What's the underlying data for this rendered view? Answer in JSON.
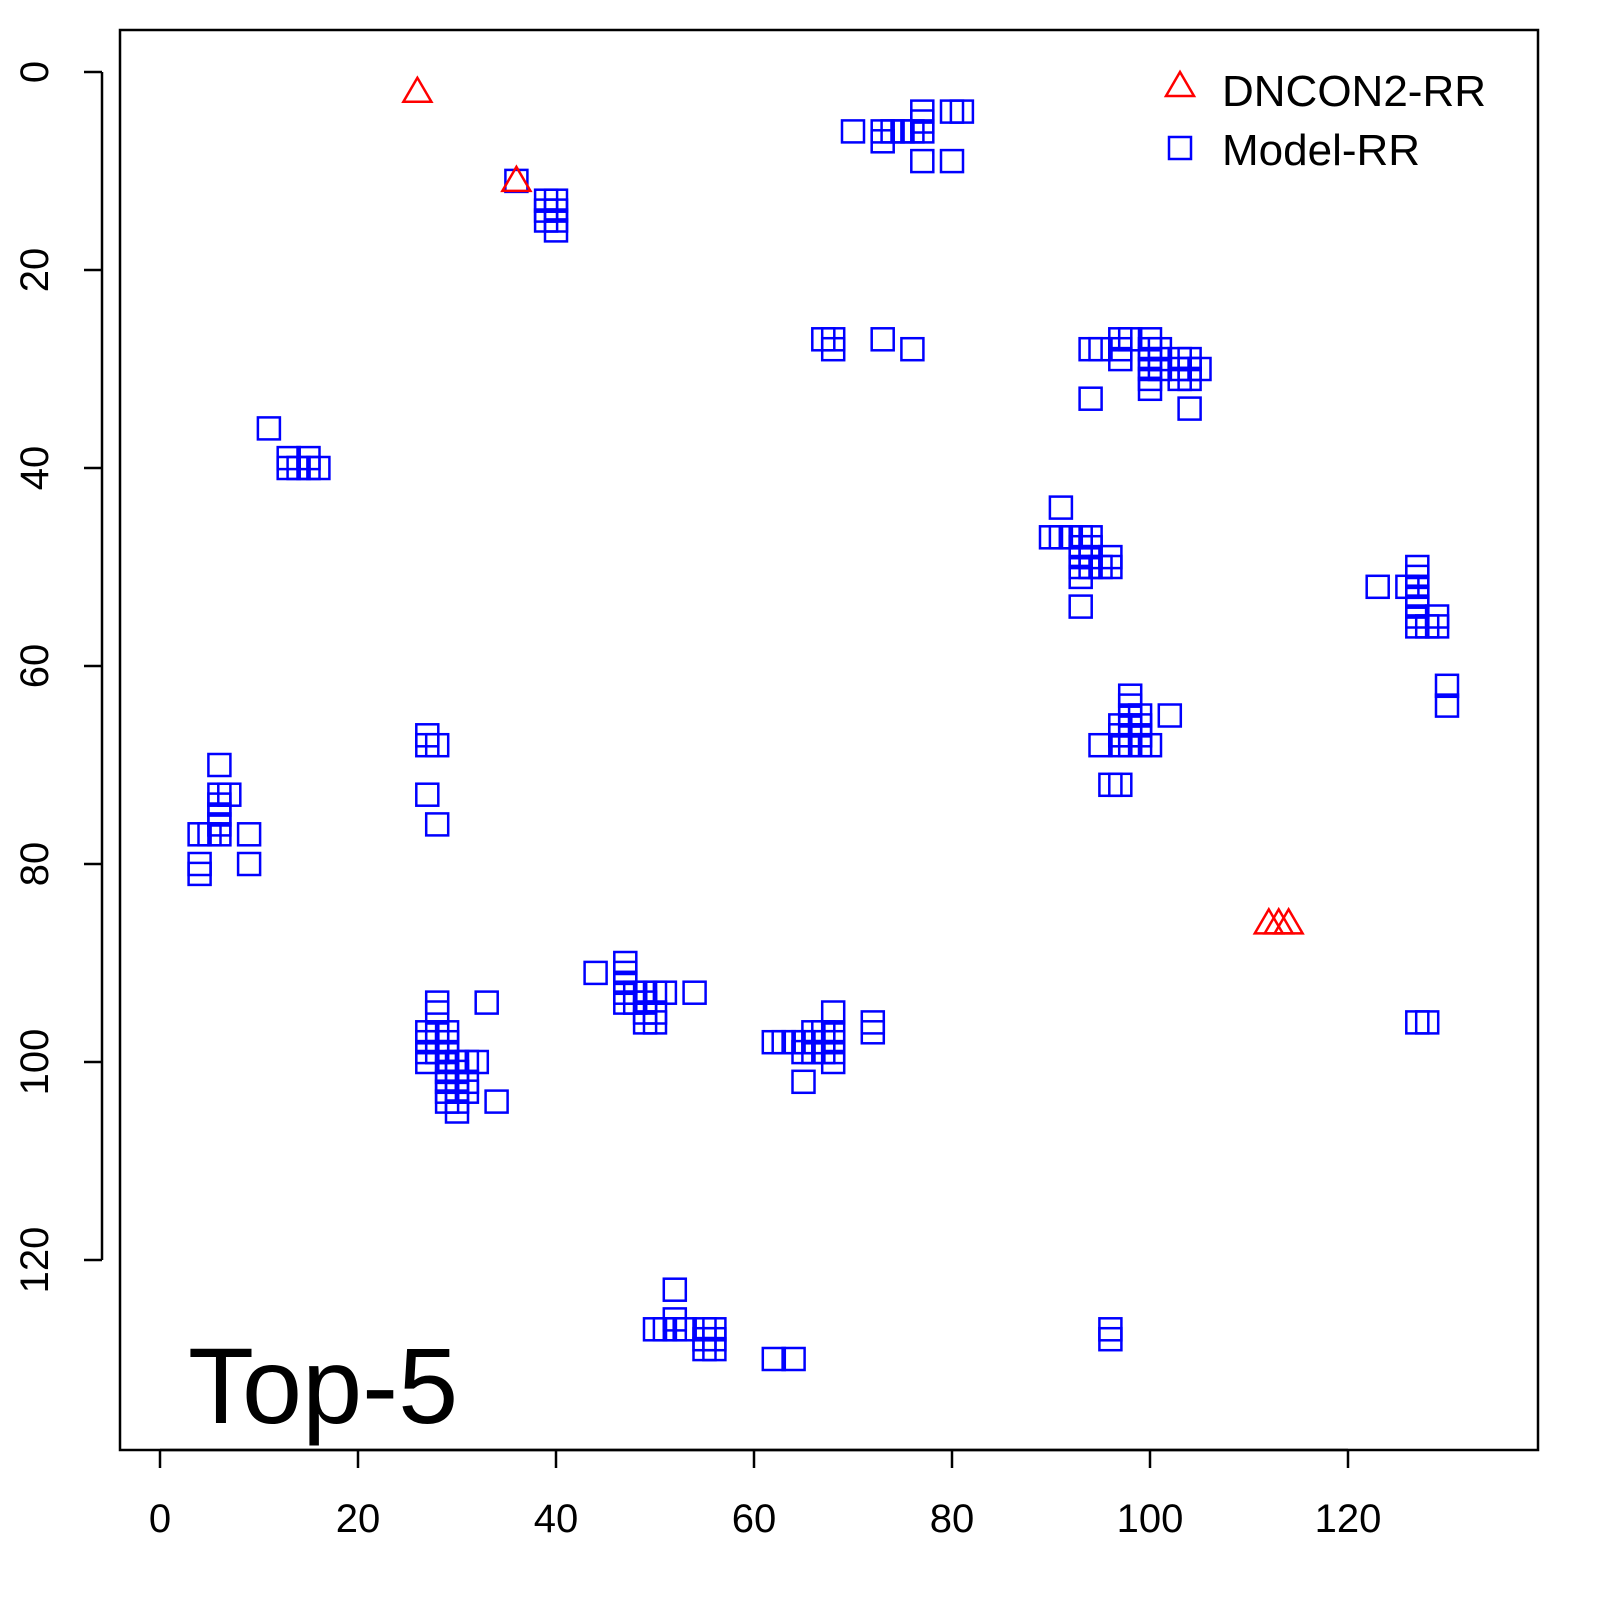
{
  "chart_data": {
    "type": "scatter",
    "title": "",
    "xlabel": "",
    "ylabel": "",
    "panel_label": "Top-5",
    "xlim": [
      -4,
      135
    ],
    "ylim": [
      -4,
      139
    ],
    "y_inverted": true,
    "x_ticks": [
      0,
      20,
      40,
      60,
      80,
      100,
      120
    ],
    "y_ticks": [
      0,
      20,
      40,
      60,
      80,
      100,
      120
    ],
    "legend_position": "top-right",
    "series": [
      {
        "name": "DNCON2-RR",
        "marker": "triangle",
        "color": "#ff0000",
        "points": [
          [
            26,
            2
          ],
          [
            36,
            11
          ],
          [
            112,
            86
          ],
          [
            113,
            86
          ],
          [
            114,
            86
          ]
        ]
      },
      {
        "name": "Model-RR",
        "marker": "square",
        "color": "#0000ff",
        "points": [
          [
            36,
            11
          ],
          [
            39,
            13
          ],
          [
            40,
            13
          ],
          [
            39,
            14
          ],
          [
            40,
            14
          ],
          [
            39,
            15
          ],
          [
            40,
            15
          ],
          [
            40,
            16
          ],
          [
            70,
            6
          ],
          [
            73,
            6
          ],
          [
            74,
            6
          ],
          [
            73,
            7
          ],
          [
            75,
            6
          ],
          [
            76,
            6
          ],
          [
            77,
            4
          ],
          [
            77,
            5
          ],
          [
            77,
            6
          ],
          [
            77,
            9
          ],
          [
            80,
            4
          ],
          [
            81,
            4
          ],
          [
            80,
            9
          ],
          [
            67,
            27
          ],
          [
            68,
            27
          ],
          [
            68,
            28
          ],
          [
            73,
            27
          ],
          [
            76,
            28
          ],
          [
            94,
            28
          ],
          [
            95,
            28
          ],
          [
            97,
            27
          ],
          [
            97,
            28
          ],
          [
            97,
            29
          ],
          [
            98,
            27
          ],
          [
            100,
            27
          ],
          [
            100,
            28
          ],
          [
            100,
            29
          ],
          [
            100,
            30
          ],
          [
            100,
            31
          ],
          [
            100,
            32
          ],
          [
            101,
            28
          ],
          [
            101,
            29
          ],
          [
            101,
            30
          ],
          [
            103,
            29
          ],
          [
            103,
            30
          ],
          [
            103,
            31
          ],
          [
            104,
            29
          ],
          [
            104,
            30
          ],
          [
            104,
            31
          ],
          [
            104,
            34
          ],
          [
            105,
            30
          ],
          [
            94,
            33
          ],
          [
            11,
            36
          ],
          [
            13,
            39
          ],
          [
            13,
            40
          ],
          [
            14,
            40
          ],
          [
            15,
            39
          ],
          [
            15,
            40
          ],
          [
            16,
            40
          ],
          [
            91,
            44
          ],
          [
            90,
            47
          ],
          [
            91,
            47
          ],
          [
            92,
            47
          ],
          [
            93,
            47
          ],
          [
            94,
            47
          ],
          [
            93,
            48
          ],
          [
            94,
            48
          ],
          [
            93,
            49
          ],
          [
            94,
            49
          ],
          [
            93,
            50
          ],
          [
            94,
            50
          ],
          [
            93,
            51
          ],
          [
            95,
            50
          ],
          [
            96,
            49
          ],
          [
            96,
            50
          ],
          [
            93,
            54
          ],
          [
            123,
            52
          ],
          [
            126,
            52
          ],
          [
            127,
            50
          ],
          [
            127,
            51
          ],
          [
            127,
            52
          ],
          [
            127,
            53
          ],
          [
            127,
            54
          ],
          [
            127,
            55
          ],
          [
            127,
            56
          ],
          [
            128,
            56
          ],
          [
            129,
            55
          ],
          [
            129,
            56
          ],
          [
            130,
            62
          ],
          [
            130,
            64
          ],
          [
            98,
            63
          ],
          [
            98,
            64
          ],
          [
            98,
            65
          ],
          [
            99,
            65
          ],
          [
            97,
            66
          ],
          [
            98,
            66
          ],
          [
            97,
            67
          ],
          [
            98,
            67
          ],
          [
            99,
            66
          ],
          [
            99,
            67
          ],
          [
            97,
            68
          ],
          [
            95,
            68
          ],
          [
            98,
            68
          ],
          [
            99,
            68
          ],
          [
            100,
            68
          ],
          [
            102,
            65
          ],
          [
            96,
            72
          ],
          [
            97,
            72
          ],
          [
            6,
            70
          ],
          [
            6,
            73
          ],
          [
            7,
            73
          ],
          [
            6,
            74
          ],
          [
            6,
            75
          ],
          [
            6,
            76
          ],
          [
            6,
            77
          ],
          [
            5,
            77
          ],
          [
            4,
            77
          ],
          [
            9,
            77
          ],
          [
            4,
            80
          ],
          [
            4,
            81
          ],
          [
            9,
            80
          ],
          [
            27,
            67
          ],
          [
            27,
            68
          ],
          [
            28,
            68
          ],
          [
            27,
            73
          ],
          [
            28,
            76
          ],
          [
            28,
            94
          ],
          [
            28,
            95
          ],
          [
            28,
            97
          ],
          [
            29,
            97
          ],
          [
            27,
            97
          ],
          [
            27,
            98
          ],
          [
            28,
            98
          ],
          [
            29,
            98
          ],
          [
            27,
            99
          ],
          [
            28,
            99
          ],
          [
            29,
            99
          ],
          [
            29,
            100
          ],
          [
            27,
            100
          ],
          [
            30,
            100
          ],
          [
            31,
            100
          ],
          [
            32,
            100
          ],
          [
            29,
            101
          ],
          [
            30,
            101
          ],
          [
            29,
            102
          ],
          [
            30,
            102
          ],
          [
            31,
            102
          ],
          [
            29,
            103
          ],
          [
            30,
            103
          ],
          [
            31,
            103
          ],
          [
            29,
            104
          ],
          [
            30,
            104
          ],
          [
            30,
            105
          ],
          [
            33,
            94
          ],
          [
            34,
            104
          ],
          [
            44,
            91
          ],
          [
            47,
            90
          ],
          [
            47,
            91
          ],
          [
            47,
            92
          ],
          [
            47,
            93
          ],
          [
            48,
            93
          ],
          [
            47,
            94
          ],
          [
            48,
            94
          ],
          [
            49,
            93
          ],
          [
            49,
            94
          ],
          [
            50,
            93
          ],
          [
            51,
            93
          ],
          [
            49,
            95
          ],
          [
            50,
            95
          ],
          [
            49,
            96
          ],
          [
            50,
            96
          ],
          [
            54,
            93
          ],
          [
            62,
            98
          ],
          [
            63,
            98
          ],
          [
            64,
            98
          ],
          [
            65,
            98
          ],
          [
            66,
            98
          ],
          [
            66,
            97
          ],
          [
            66,
            99
          ],
          [
            65,
            99
          ],
          [
            67,
            97
          ],
          [
            67,
            98
          ],
          [
            67,
            99
          ],
          [
            68,
            95
          ],
          [
            68,
            97
          ],
          [
            68,
            98
          ],
          [
            68,
            99
          ],
          [
            68,
            100
          ],
          [
            65,
            102
          ],
          [
            72,
            96
          ],
          [
            72,
            97
          ],
          [
            52,
            123
          ],
          [
            52,
            126
          ],
          [
            50,
            127
          ],
          [
            51,
            127
          ],
          [
            52,
            127
          ],
          [
            53,
            127
          ],
          [
            55,
            127
          ],
          [
            56,
            127
          ],
          [
            55,
            128
          ],
          [
            56,
            128
          ],
          [
            55,
            129
          ],
          [
            56,
            129
          ],
          [
            62,
            130
          ],
          [
            64,
            130
          ],
          [
            96,
            127
          ],
          [
            96,
            128
          ],
          [
            127,
            96
          ],
          [
            128,
            96
          ]
        ]
      }
    ]
  }
}
